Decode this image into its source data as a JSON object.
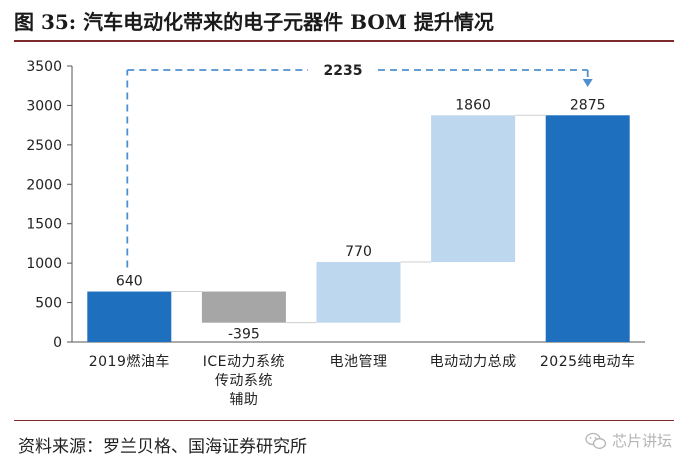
{
  "title": "图 35:  汽车电动化带来的电子元器件 BOM 提升情况",
  "source": "资料来源：罗兰贝格、国海证券研究所",
  "watermark": "芯片讲坛",
  "colors": {
    "dark_blue": "#1f6fbf",
    "grey": "#a6a6a6",
    "light_blue": "#bdd7ee",
    "arrow": "#4f8fd0",
    "title_rule": "#7f2a2a"
  },
  "chart_data": {
    "type": "waterfall",
    "ylim": [
      0,
      3500
    ],
    "yticks": [
      0,
      500,
      1000,
      1500,
      2000,
      2500,
      3000,
      3500
    ],
    "categories": [
      [
        "2019燃油车"
      ],
      [
        "ICE动力系统",
        "传动系统",
        "辅助"
      ],
      [
        "电池管理"
      ],
      [
        "电动动力总成"
      ],
      [
        "2025纯电动车"
      ]
    ],
    "bars": [
      {
        "value": 640,
        "label": "640",
        "kind": "total",
        "color": "dark_blue"
      },
      {
        "value": -395,
        "label": "-395",
        "kind": "delta",
        "color": "grey"
      },
      {
        "value": 770,
        "label": "770",
        "kind": "delta",
        "color": "light_blue"
      },
      {
        "value": 1860,
        "label": "1860",
        "kind": "delta",
        "color": "light_blue"
      },
      {
        "value": 2875,
        "label": "2875",
        "kind": "total",
        "color": "dark_blue"
      }
    ],
    "annotation": {
      "label": "2235",
      "from": 0,
      "to": 4
    }
  }
}
